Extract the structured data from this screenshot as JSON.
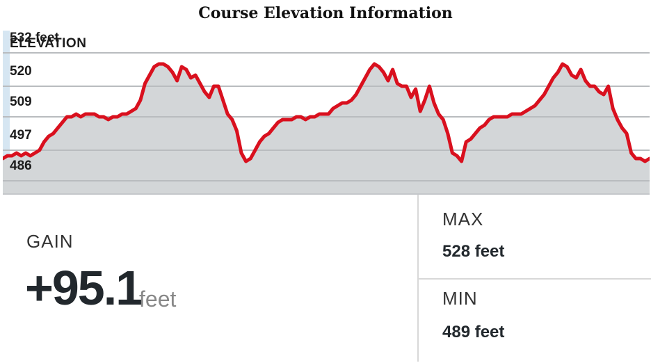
{
  "title": "Course Elevation Information",
  "chart_data": {
    "type": "area",
    "ylabel": "ELEVATION",
    "y_ticks": [
      {
        "value": 532,
        "label": "532 feet"
      },
      {
        "value": 520,
        "label": "520"
      },
      {
        "value": 509,
        "label": "509"
      },
      {
        "value": 497,
        "label": "497"
      },
      {
        "value": 486,
        "label": "486"
      }
    ],
    "ylim": [
      481,
      540
    ],
    "grid": true,
    "line_color": "#d9101e",
    "fill_color": "#d3d6d8",
    "series": [
      {
        "y": [
          494,
          495,
          495,
          496,
          495,
          496,
          495,
          496,
          497,
          500,
          502,
          503,
          505,
          507,
          509,
          509,
          510,
          509,
          510,
          510,
          510,
          509,
          509,
          508,
          509,
          509,
          510,
          510,
          511,
          512,
          515,
          521,
          524,
          527,
          528,
          528,
          527,
          525,
          522,
          527,
          526,
          523,
          524,
          521,
          518,
          516,
          520,
          520,
          515,
          510,
          508,
          504,
          496,
          493,
          494,
          497,
          500,
          502,
          503,
          505,
          507,
          508,
          508,
          508,
          509,
          509,
          508,
          509,
          509,
          510,
          510,
          510,
          512,
          513,
          514,
          514,
          515,
          517,
          520,
          523,
          526,
          528,
          527,
          525,
          522,
          526,
          521,
          520,
          520,
          516,
          519,
          511,
          515,
          520,
          514,
          510,
          508,
          503,
          496,
          495,
          493,
          500,
          501,
          503,
          505,
          506,
          508,
          509,
          509,
          509,
          509,
          510,
          510,
          510,
          511,
          512,
          513,
          515,
          517,
          520,
          523,
          525,
          528,
          527,
          524,
          523,
          526,
          522,
          520,
          520,
          518,
          517,
          520,
          512,
          508,
          505,
          503,
          496,
          494,
          494,
          493,
          494
        ]
      }
    ]
  },
  "stats": {
    "gain_label": "GAIN",
    "gain_value": "+95.1",
    "gain_unit": "feet",
    "max_label": "MAX",
    "max_value": "528 feet",
    "min_label": "MIN",
    "min_value": "489 feet"
  }
}
